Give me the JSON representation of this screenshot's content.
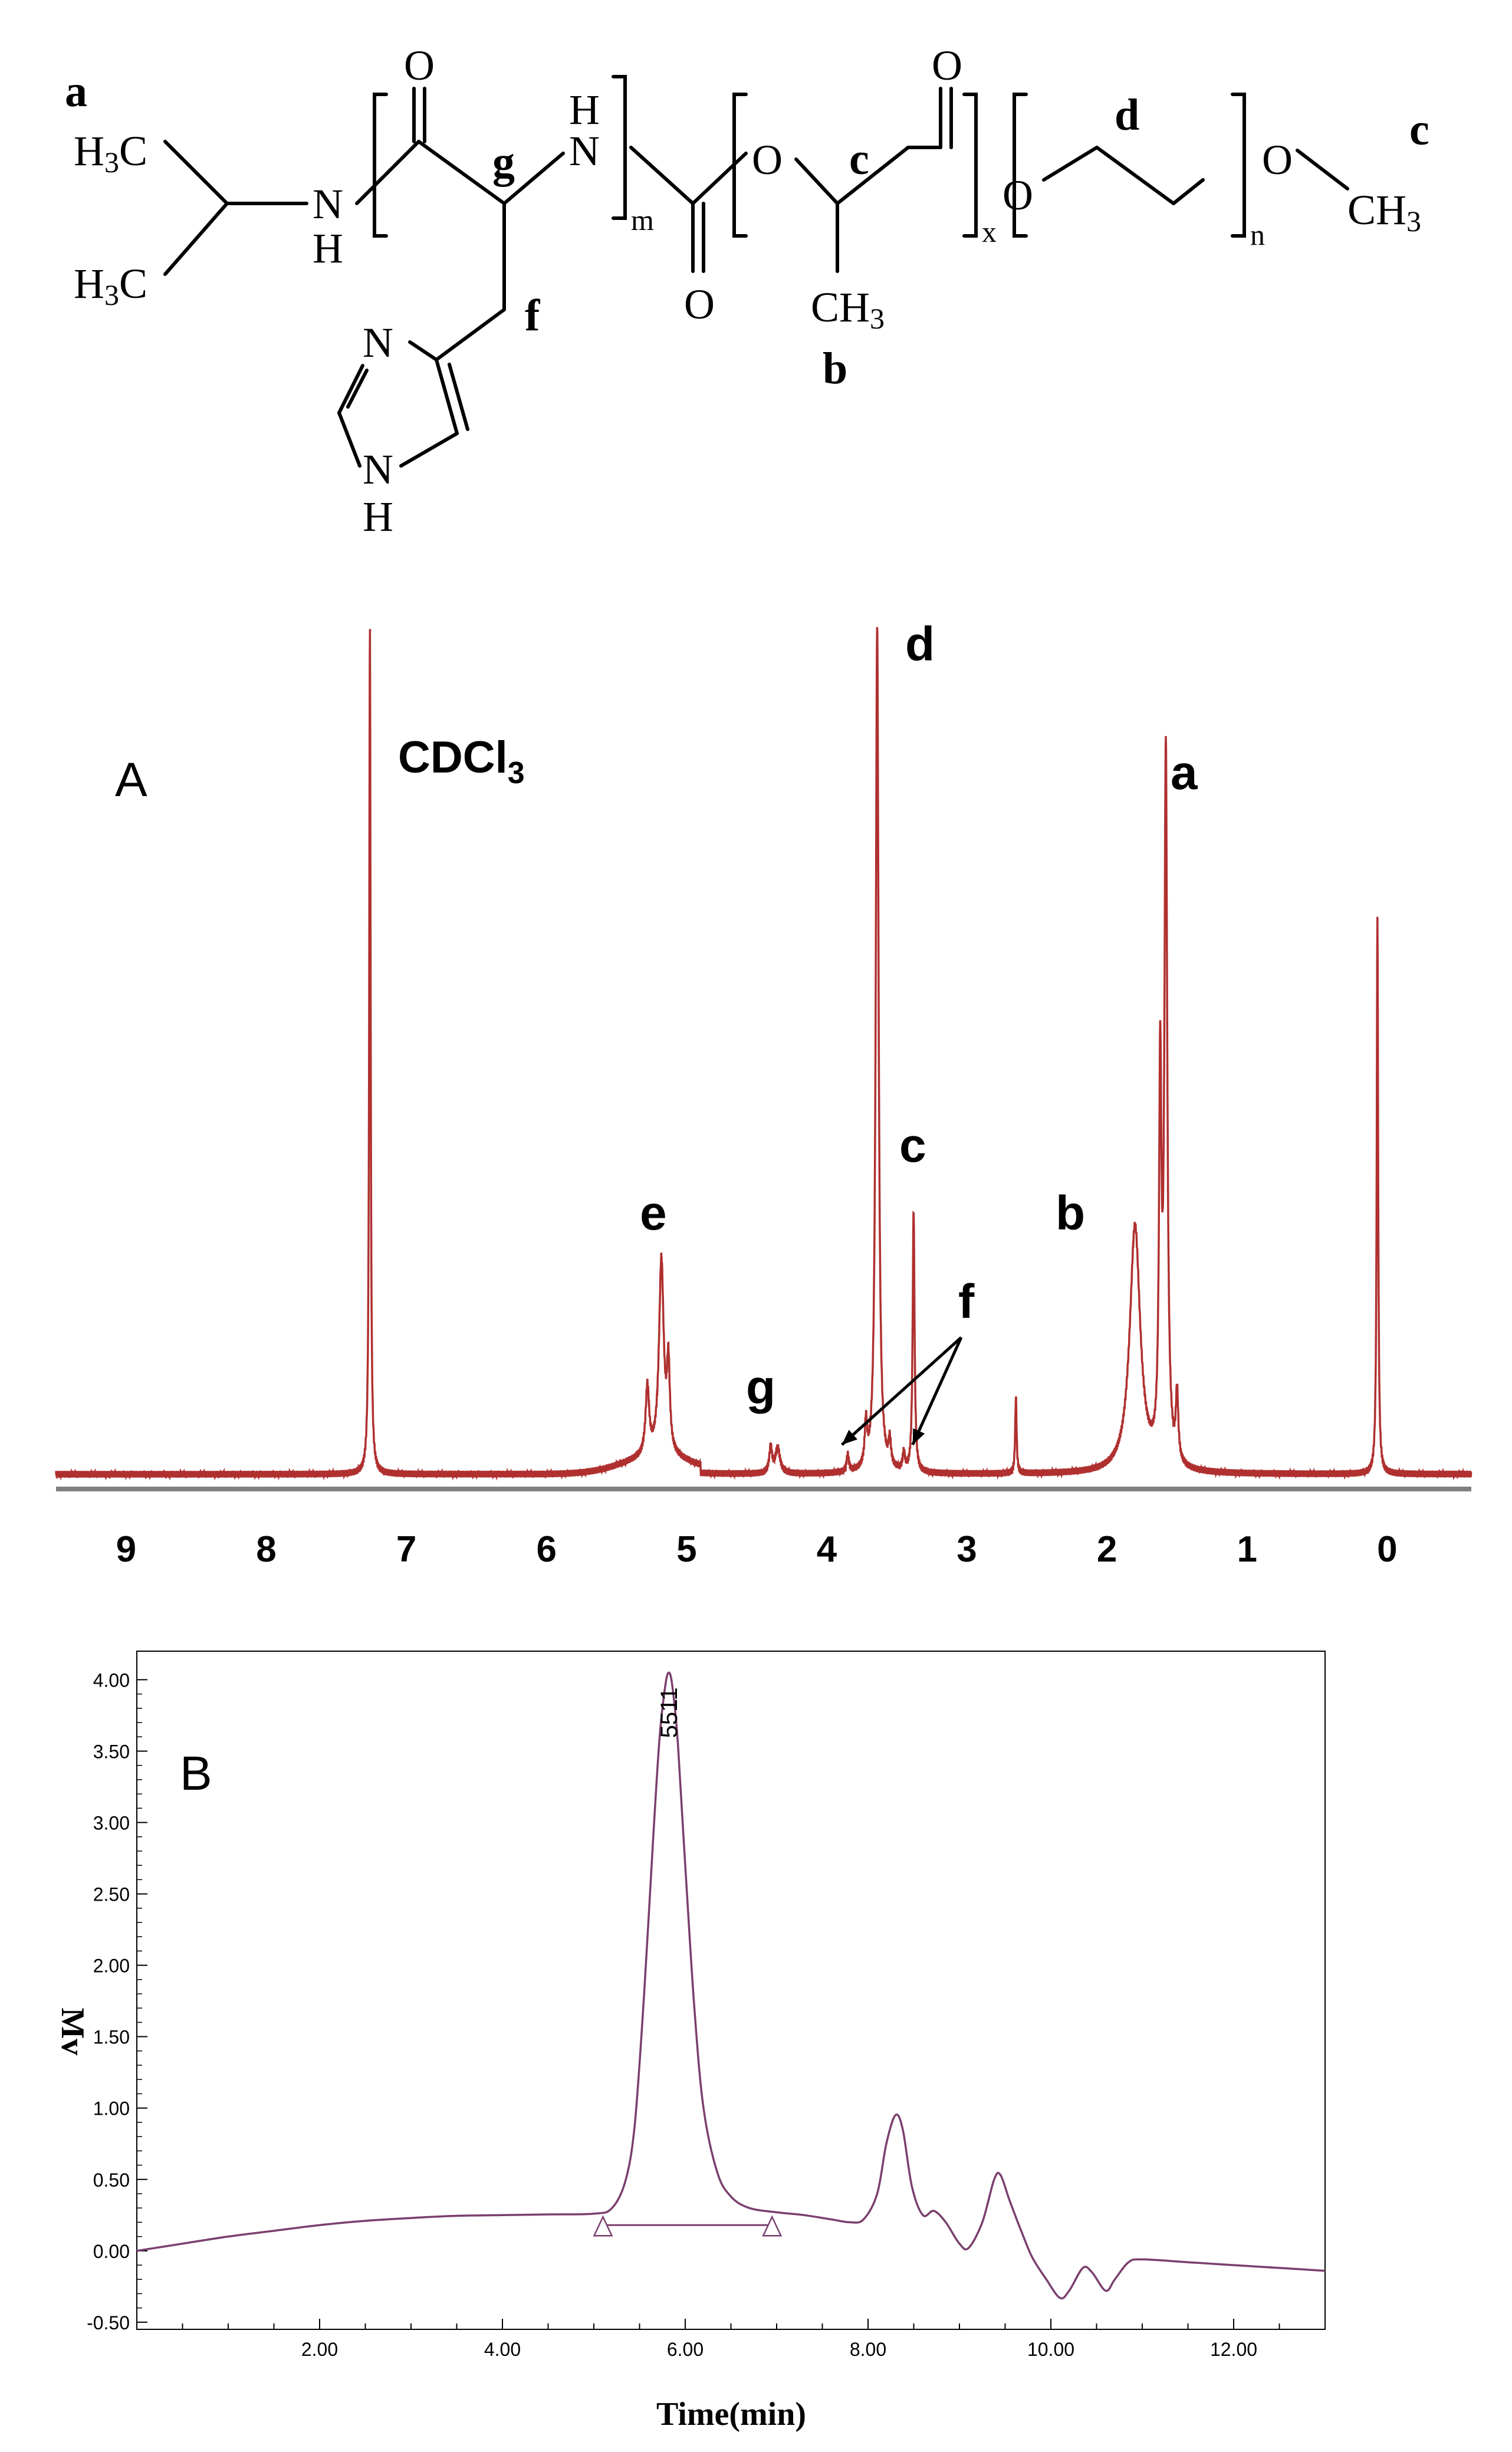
{
  "structure": {
    "labels": {
      "a": "a",
      "b": "b",
      "c_left": "c",
      "c_right": "c",
      "d": "d",
      "f": "f",
      "g": "g"
    },
    "atoms": {
      "h3c_top": "H3C",
      "h3c_bottom": "H3C",
      "n_amide1": "N",
      "h_amide1": "H",
      "o_top1": "O",
      "n_amide2": "N",
      "h_amide2": "H",
      "sub_m": "m",
      "o_carbamate": "O",
      "o_ester1": "O",
      "o_top2": "O",
      "ch3_lactide": "CH3",
      "sub_x": "x",
      "o_ester2": "O",
      "sub_n": "n",
      "o_methoxy": "O",
      "ch3_end": "CH3",
      "n_ring": "N",
      "nh_ring_n": "N",
      "nh_ring_h": "H"
    }
  },
  "chart_data": [
    {
      "type": "line",
      "panel_label": "A",
      "solvent_label": "CDCl3",
      "x_reversed": true,
      "xlim": [
        9.5,
        -0.6
      ],
      "x_ticks": [
        "9",
        "8",
        "7",
        "6",
        "5",
        "4",
        "3",
        "2",
        "1",
        "0"
      ],
      "color": "#b03030",
      "peaks": [
        {
          "ppm": 7.26,
          "height": 1.0,
          "label": ""
        },
        {
          "ppm": 3.64,
          "height": 1.0,
          "label": "d"
        },
        {
          "ppm": 1.58,
          "height": 0.83,
          "label": "a"
        },
        {
          "ppm": 0.07,
          "height": 0.66,
          "label": ""
        },
        {
          "ppm": 3.38,
          "height": 0.31,
          "label": "c"
        },
        {
          "ppm": 1.8,
          "height": 0.29,
          "label": "b"
        },
        {
          "ppm": 5.18,
          "height": 0.23,
          "label": "e"
        },
        {
          "ppm": 4.35,
          "height": 0.03,
          "label": "g"
        },
        {
          "ppm": 2.65,
          "height": 0.09,
          "label": ""
        }
      ],
      "annotation": {
        "text": "f",
        "arrow_targets_ppm": [
          3.85,
          3.45
        ]
      }
    },
    {
      "type": "line",
      "panel_label": "B",
      "xlabel": "Time(min)",
      "ylabel": "Mv",
      "xlim": [
        0,
        13
      ],
      "ylim": [
        -0.55,
        4.2
      ],
      "x_ticks": [
        "2.00",
        "4.00",
        "6.00",
        "8.00",
        "10.00",
        "12.00"
      ],
      "y_ticks": [
        "-0.50",
        "0.00",
        "0.50",
        "1.00",
        "1.50",
        "2.00",
        "2.50",
        "3.00",
        "3.50",
        "4.00"
      ],
      "peak_label": "5511",
      "peak_apex": {
        "x": 5.82,
        "y": 4.05
      },
      "integration_baseline": [
        [
          5.1,
          0.18
        ],
        [
          6.95,
          0.18
        ]
      ],
      "color": "#7a3f6e",
      "points": [
        [
          0.0,
          0.0
        ],
        [
          0.5,
          0.05
        ],
        [
          1.0,
          0.1
        ],
        [
          1.5,
          0.14
        ],
        [
          2.0,
          0.18
        ],
        [
          2.5,
          0.21
        ],
        [
          3.0,
          0.23
        ],
        [
          3.5,
          0.245
        ],
        [
          4.0,
          0.25
        ],
        [
          4.5,
          0.255
        ],
        [
          5.0,
          0.26
        ],
        [
          5.2,
          0.3
        ],
        [
          5.35,
          0.5
        ],
        [
          5.45,
          0.9
        ],
        [
          5.55,
          1.8
        ],
        [
          5.65,
          2.9
        ],
        [
          5.72,
          3.6
        ],
        [
          5.78,
          3.95
        ],
        [
          5.82,
          4.05
        ],
        [
          5.86,
          3.95
        ],
        [
          5.92,
          3.55
        ],
        [
          6.0,
          2.7
        ],
        [
          6.1,
          1.7
        ],
        [
          6.2,
          1.0
        ],
        [
          6.35,
          0.55
        ],
        [
          6.5,
          0.38
        ],
        [
          6.7,
          0.3
        ],
        [
          7.0,
          0.27
        ],
        [
          7.3,
          0.25
        ],
        [
          7.6,
          0.22
        ],
        [
          7.8,
          0.2
        ],
        [
          7.95,
          0.22
        ],
        [
          8.1,
          0.4
        ],
        [
          8.2,
          0.75
        ],
        [
          8.3,
          0.95
        ],
        [
          8.38,
          0.85
        ],
        [
          8.48,
          0.45
        ],
        [
          8.6,
          0.25
        ],
        [
          8.72,
          0.28
        ],
        [
          8.85,
          0.2
        ],
        [
          9.0,
          0.05
        ],
        [
          9.1,
          0.02
        ],
        [
          9.25,
          0.2
        ],
        [
          9.38,
          0.5
        ],
        [
          9.45,
          0.53
        ],
        [
          9.55,
          0.35
        ],
        [
          9.7,
          0.1
        ],
        [
          9.8,
          -0.05
        ],
        [
          9.95,
          -0.2
        ],
        [
          10.1,
          -0.33
        ],
        [
          10.2,
          -0.28
        ],
        [
          10.35,
          -0.12
        ],
        [
          10.45,
          -0.15
        ],
        [
          10.6,
          -0.28
        ],
        [
          10.7,
          -0.2
        ],
        [
          10.85,
          -0.08
        ],
        [
          11.0,
          -0.06
        ],
        [
          11.5,
          -0.08
        ],
        [
          12.0,
          -0.1
        ],
        [
          12.5,
          -0.12
        ],
        [
          13.0,
          -0.14
        ]
      ]
    }
  ]
}
